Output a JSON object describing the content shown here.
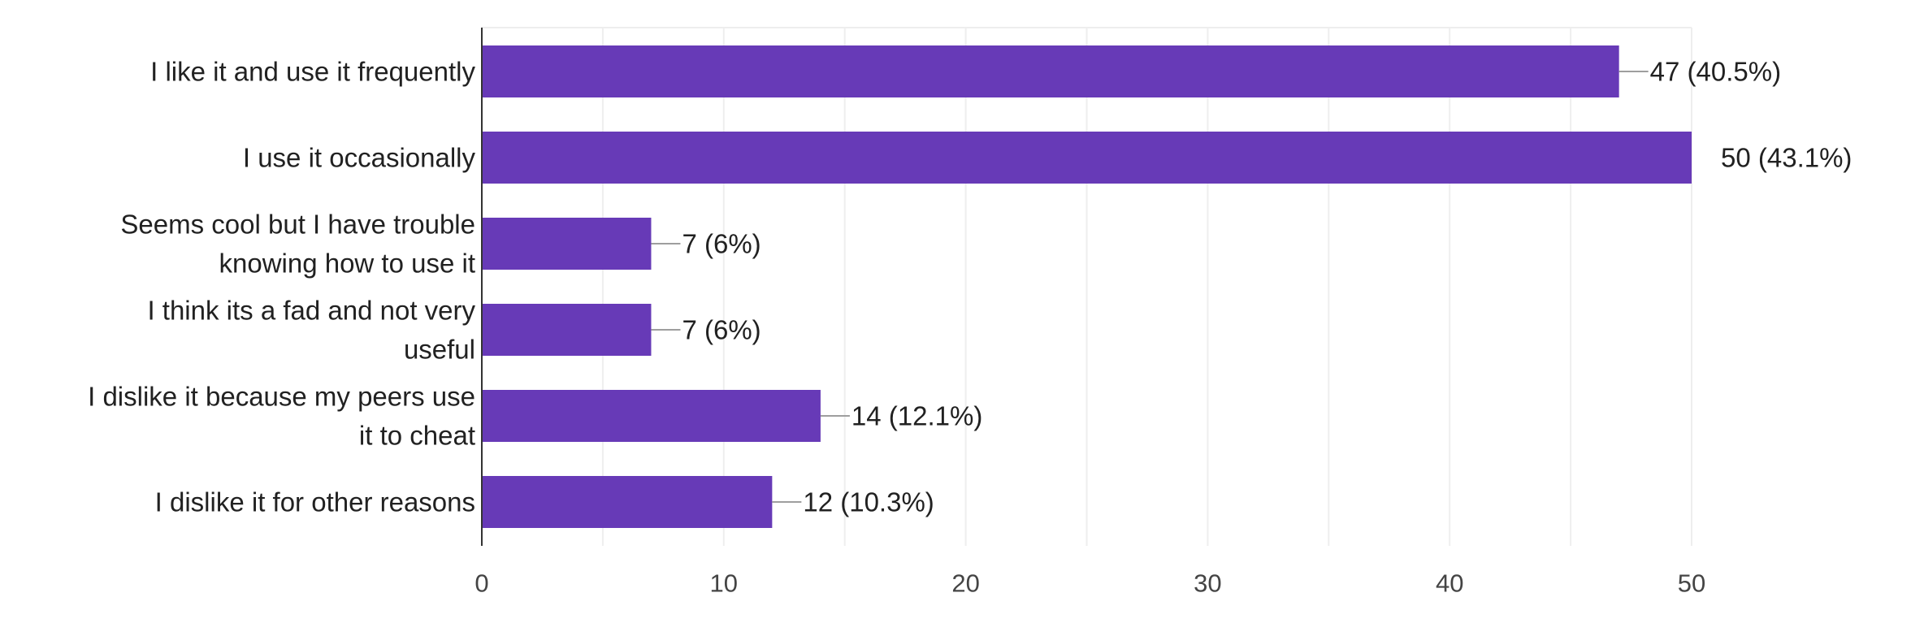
{
  "chart_data": {
    "type": "bar",
    "orientation": "horizontal",
    "categories": [
      [
        "I like it and use it frequently"
      ],
      [
        "I use it occasionally"
      ],
      [
        "Seems cool but I have trouble",
        "knowing how to use it"
      ],
      [
        "I think its a fad and not very",
        "useful"
      ],
      [
        "I dislike it because my peers use",
        "it to cheat"
      ],
      [
        "I dislike it for other reasons"
      ]
    ],
    "values": [
      47,
      50,
      7,
      7,
      14,
      12
    ],
    "data_labels": [
      "47 (40.5%)",
      "50 (43.1%)",
      "7 (6%)",
      "7 (6%)",
      "14 (12.1%)",
      "12 (10.3%)"
    ],
    "xlim": [
      0,
      50
    ],
    "xticks": [
      0,
      10,
      20,
      30,
      40,
      50
    ],
    "grid": true,
    "legend": "none",
    "bar_color": "#673ab7",
    "grid_color": "#eeeeee",
    "axis_color": "#333333"
  }
}
